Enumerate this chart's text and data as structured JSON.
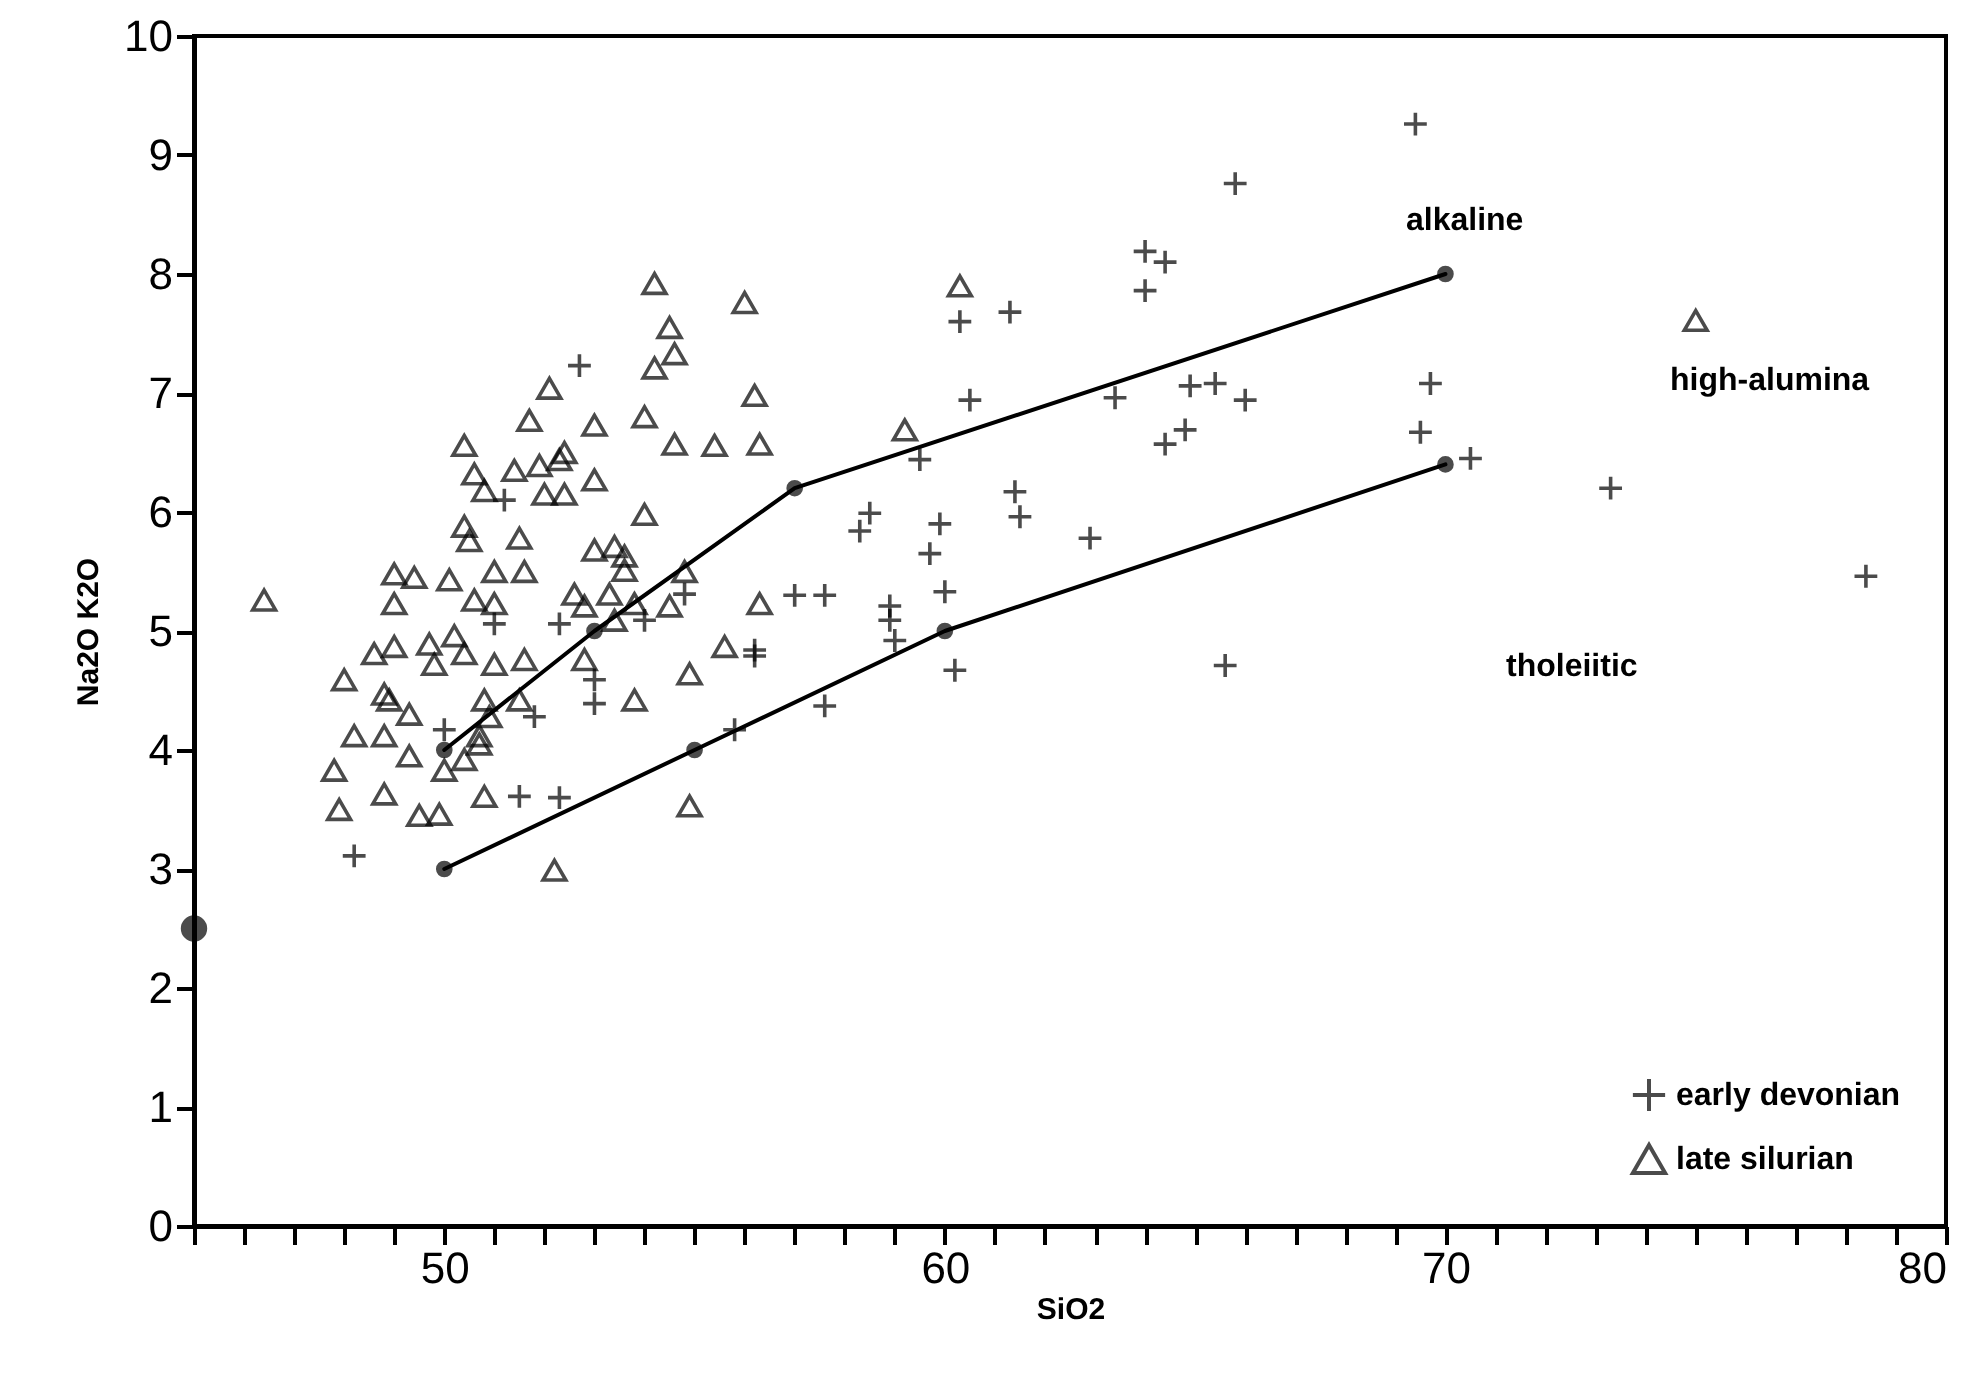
{
  "chart_data": {
    "type": "scatter",
    "xlabel": "SiO2",
    "ylabel": "Na2O K2O",
    "xlim": [
      45,
      80
    ],
    "ylim": [
      0,
      10
    ],
    "xticks": [
      {
        "value": 45,
        "label": null
      },
      {
        "value": 46,
        "label": null
      },
      {
        "value": 47,
        "label": null
      },
      {
        "value": 48,
        "label": null
      },
      {
        "value": 49,
        "label": null
      },
      50,
      {
        "value": 51,
        "label": null
      },
      {
        "value": 52,
        "label": null
      },
      {
        "value": 53,
        "label": null
      },
      {
        "value": 54,
        "label": null
      },
      {
        "value": 55,
        "label": null
      },
      {
        "value": 56,
        "label": null
      },
      {
        "value": 57,
        "label": null
      },
      {
        "value": 58,
        "label": null
      },
      {
        "value": 59,
        "label": null
      },
      60,
      {
        "value": 61,
        "label": null
      },
      {
        "value": 62,
        "label": null
      },
      {
        "value": 63,
        "label": null
      },
      {
        "value": 64,
        "label": null
      },
      {
        "value": 65,
        "label": null
      },
      {
        "value": 66,
        "label": null
      },
      {
        "value": 67,
        "label": null
      },
      {
        "value": 68,
        "label": null
      },
      {
        "value": 69,
        "label": null
      },
      70,
      {
        "value": 71,
        "label": null
      },
      {
        "value": 72,
        "label": null
      },
      {
        "value": 73,
        "label": null
      },
      {
        "value": 74,
        "label": null
      },
      {
        "value": 75,
        "label": null
      },
      {
        "value": 76,
        "label": null
      },
      {
        "value": 77,
        "label": null
      },
      {
        "value": 78,
        "label": null
      },
      {
        "value": 79,
        "label": null
      },
      80
    ],
    "yticks": [
      0,
      1,
      2,
      3,
      4,
      5,
      6,
      7,
      8,
      9,
      10
    ],
    "grid": false,
    "legend": "bottom right",
    "annotations": [
      "alkaline",
      "high-alumina",
      "tholeiitic"
    ],
    "series": [
      {
        "name": "early devonian",
        "type": "scatter",
        "marker": "cross",
        "color": "#000000",
        "x": [
          52.7,
          60.3,
          61.3,
          60.5,
          59.5,
          61.4,
          61.5,
          58.5,
          58.3,
          59.9,
          59.7,
          60.0,
          58.9,
          58.9,
          59.0,
          57.0,
          57.6,
          56.2,
          51.2,
          51.0,
          52.3,
          54.0,
          54.8,
          53.0,
          53.0,
          51.8,
          50.0,
          56.2,
          60.2,
          57.6,
          55.8,
          51.5,
          52.3,
          48.2,
          69.4,
          65.8,
          64.0,
          64.4,
          64.0,
          63.4,
          64.9,
          65.4,
          66.0,
          64.8,
          64.4,
          69.7,
          69.5,
          70.5,
          73.3,
          78.4,
          62.9,
          65.6
        ],
        "values": [
          7.23,
          7.6,
          7.68,
          6.94,
          6.44,
          6.17,
          5.96,
          5.99,
          5.84,
          5.9,
          5.65,
          5.33,
          5.21,
          5.09,
          4.92,
          5.3,
          5.3,
          4.84,
          6.1,
          5.06,
          5.06,
          5.09,
          5.31,
          4.59,
          4.39,
          4.28,
          4.17,
          4.79,
          4.67,
          4.37,
          4.17,
          3.61,
          3.6,
          3.11,
          9.26,
          8.76,
          8.19,
          8.1,
          7.86,
          6.96,
          7.06,
          7.08,
          6.94,
          6.69,
          6.57,
          7.08,
          6.67,
          6.45,
          6.2,
          5.46,
          5.78,
          4.71
        ]
      },
      {
        "name": "late silurian",
        "type": "scatter",
        "marker": "triangle",
        "color": "#000000",
        "x": [
          54.2,
          56.0,
          54.5,
          54.6,
          54.2,
          52.1,
          56.2,
          51.7,
          53.0,
          54.0,
          54.6,
          55.4,
          56.3,
          50.4,
          59.2,
          60.3,
          50.6,
          51.4,
          51.9,
          52.3,
          52.4,
          53.0,
          50.8,
          52.0,
          52.4,
          54.0,
          50.4,
          50.5,
          51.5,
          53.0,
          53.4,
          53.6,
          53.6,
          51.0,
          51.6,
          49.0,
          49.4,
          50.1,
          49.0,
          50.6,
          51.0,
          52.6,
          53.3,
          53.8,
          54.5,
          54.8,
          56.3,
          46.4,
          52.8,
          53.4,
          48.6,
          49.0,
          49.7,
          50.2,
          50.4,
          51.0,
          51.6,
          49.8,
          52.8,
          55.6,
          54.9,
          48.0,
          48.8,
          48.9,
          49.3,
          50.8,
          51.5,
          53.8,
          50.9,
          48.2,
          48.8,
          50.7,
          49.3,
          50.7,
          50.4,
          50.0,
          47.8,
          48.8,
          50.8,
          47.9,
          49.5,
          49.9,
          54.9,
          52.2,
          75.0
        ],
        "values": [
          7.92,
          7.76,
          7.55,
          7.33,
          7.21,
          7.04,
          6.98,
          6.77,
          6.73,
          6.8,
          6.57,
          6.56,
          6.57,
          6.56,
          6.69,
          7.9,
          6.32,
          6.35,
          6.39,
          6.44,
          6.5,
          6.27,
          6.18,
          6.15,
          6.15,
          5.98,
          5.88,
          5.76,
          5.78,
          5.68,
          5.71,
          5.63,
          5.51,
          5.5,
          5.5,
          5.48,
          5.45,
          5.43,
          5.23,
          5.26,
          5.23,
          5.31,
          5.31,
          5.23,
          5.21,
          5.5,
          5.23,
          5.26,
          5.21,
          5.09,
          4.81,
          4.87,
          4.89,
          4.96,
          4.81,
          4.72,
          4.76,
          4.72,
          4.76,
          4.87,
          4.64,
          4.59,
          4.47,
          4.42,
          4.3,
          4.42,
          4.42,
          4.42,
          4.28,
          4.12,
          4.12,
          4.12,
          3.95,
          4.05,
          3.92,
          3.83,
          3.83,
          3.63,
          3.61,
          3.5,
          3.45,
          3.46,
          3.53,
          2.99,
          7.61
        ]
      },
      {
        "type": "line",
        "marker": "circle",
        "color": "#000000",
        "line_style": "solid",
        "x": [
          50,
          53,
          57,
          70
        ],
        "values": [
          4,
          5,
          6.2,
          8
        ]
      },
      {
        "type": "line",
        "marker": "circle",
        "color": "#000000",
        "line_style": "solid",
        "x": [
          50,
          55,
          60,
          70
        ],
        "values": [
          3,
          4,
          5,
          6.4
        ]
      },
      {
        "type": "scatter",
        "marker": "circle",
        "color": "#000000",
        "x": [
          45
        ],
        "values": [
          2.5
        ]
      }
    ]
  }
}
